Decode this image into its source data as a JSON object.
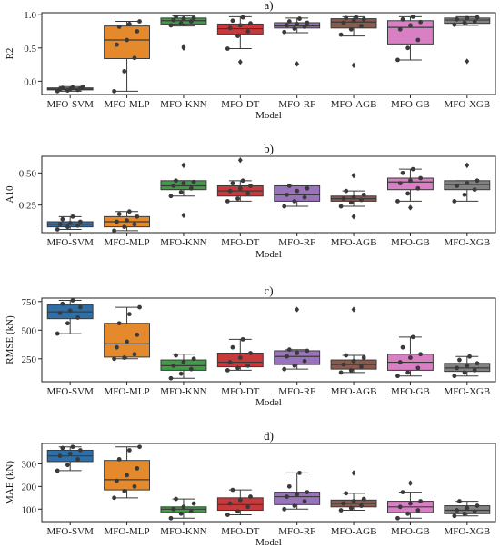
{
  "colors": {
    "MFO-SVM": "#2f6fa8",
    "MFO-MLP": "#e58a2c",
    "MFO-KNN": "#3f9e45",
    "MFO-DT": "#c8393b",
    "MFO-RF": "#9a73bd",
    "MFO-AGB": "#8a5a4d",
    "MFO-GB": "#d97fc3",
    "MFO-XGB": "#828282"
  },
  "chart_data": [
    {
      "type": "box",
      "title": "a)",
      "xlabel": "Model",
      "ylabel": "R2",
      "ylim": [
        -0.2,
        1.03
      ],
      "yticks": [
        0.0,
        0.5,
        1.0
      ],
      "yticklabels": [
        "0.0",
        "0.5",
        "1.0"
      ],
      "categories": [
        "MFO-SVM",
        "MFO-MLP",
        "MFO-KNN",
        "MFO-DT",
        "MFO-RF",
        "MFO-AGB",
        "MFO-GB",
        "MFO-XGB"
      ],
      "boxes": [
        {
          "name": "MFO-SVM",
          "whislo": -0.15,
          "q1": -0.13,
          "med": -0.12,
          "q3": -0.1,
          "whishi": -0.08,
          "fliers": [],
          "points": [
            -0.15,
            -0.14,
            -0.13,
            -0.12,
            -0.12,
            -0.11,
            -0.1,
            -0.09,
            -0.08
          ]
        },
        {
          "name": "MFO-MLP",
          "whislo": -0.15,
          "q1": 0.34,
          "med": 0.62,
          "q3": 0.83,
          "whishi": 0.9,
          "fliers": [],
          "points": [
            -0.15,
            0.15,
            0.35,
            0.55,
            0.62,
            0.75,
            0.82,
            0.86,
            0.9
          ]
        },
        {
          "name": "MFO-KNN",
          "whislo": 0.83,
          "q1": 0.86,
          "med": 0.91,
          "q3": 0.95,
          "whishi": 0.98,
          "fliers": [
            0.5,
            0.52
          ],
          "points": [
            0.84,
            0.87,
            0.9,
            0.92,
            0.94,
            0.95,
            0.97
          ]
        },
        {
          "name": "MFO-DT",
          "whislo": 0.49,
          "q1": 0.71,
          "med": 0.79,
          "q3": 0.86,
          "whishi": 0.97,
          "fliers": [
            0.29
          ],
          "points": [
            0.49,
            0.68,
            0.75,
            0.8,
            0.84,
            0.87,
            0.91,
            0.96
          ]
        },
        {
          "name": "MFO-RF",
          "whislo": 0.73,
          "q1": 0.8,
          "med": 0.83,
          "q3": 0.88,
          "whishi": 0.95,
          "fliers": [
            0.26
          ],
          "points": [
            0.74,
            0.79,
            0.82,
            0.84,
            0.86,
            0.88,
            0.9,
            0.94
          ]
        },
        {
          "name": "MFO-AGB",
          "whislo": 0.68,
          "q1": 0.8,
          "med": 0.89,
          "q3": 0.94,
          "whishi": 0.97,
          "fliers": [
            0.24
          ],
          "points": [
            0.7,
            0.78,
            0.83,
            0.88,
            0.91,
            0.93,
            0.95,
            0.96
          ]
        },
        {
          "name": "MFO-GB",
          "whislo": 0.32,
          "q1": 0.56,
          "med": 0.81,
          "q3": 0.91,
          "whishi": 0.97,
          "fliers": [],
          "points": [
            0.32,
            0.5,
            0.62,
            0.78,
            0.84,
            0.89,
            0.93,
            0.97
          ]
        },
        {
          "name": "MFO-XGB",
          "whislo": 0.84,
          "q1": 0.87,
          "med": 0.92,
          "q3": 0.95,
          "whishi": 0.97,
          "fliers": [
            0.3
          ],
          "points": [
            0.85,
            0.88,
            0.9,
            0.93,
            0.95,
            0.96
          ]
        }
      ]
    },
    {
      "type": "box",
      "title": "b)",
      "xlabel": "Model",
      "ylabel": "A10",
      "ylim": [
        0.035,
        0.63
      ],
      "yticks": [
        0.25,
        0.5
      ],
      "yticklabels": [
        "0.25",
        "0.50"
      ],
      "categories": [
        "MFO-SVM",
        "MFO-MLP",
        "MFO-KNN",
        "MFO-DT",
        "MFO-RF",
        "MFO-AGB",
        "MFO-GB",
        "MFO-XGB"
      ],
      "boxes": [
        {
          "name": "MFO-SVM",
          "whislo": 0.06,
          "q1": 0.08,
          "med": 0.1,
          "q3": 0.12,
          "whishi": 0.16,
          "fliers": [],
          "points": [
            0.06,
            0.08,
            0.09,
            0.1,
            0.11,
            0.12,
            0.14,
            0.16
          ]
        },
        {
          "name": "MFO-MLP",
          "whislo": 0.05,
          "q1": 0.08,
          "med": 0.12,
          "q3": 0.16,
          "whishi": 0.2,
          "fliers": [],
          "points": [
            0.05,
            0.08,
            0.1,
            0.12,
            0.13,
            0.16,
            0.18,
            0.2
          ]
        },
        {
          "name": "MFO-KNN",
          "whislo": 0.32,
          "q1": 0.37,
          "med": 0.4,
          "q3": 0.44,
          "whishi": 0.44,
          "fliers": [
            0.17,
            0.56
          ],
          "points": [
            0.32,
            0.35,
            0.38,
            0.4,
            0.42,
            0.43,
            0.44
          ]
        },
        {
          "name": "MFO-DT",
          "whislo": 0.28,
          "q1": 0.32,
          "med": 0.36,
          "q3": 0.4,
          "whishi": 0.44,
          "fliers": [
            0.6
          ],
          "points": [
            0.28,
            0.3,
            0.34,
            0.36,
            0.38,
            0.4,
            0.42,
            0.44
          ]
        },
        {
          "name": "MFO-RF",
          "whislo": 0.24,
          "q1": 0.28,
          "med": 0.33,
          "q3": 0.4,
          "whishi": 0.4,
          "fliers": [],
          "points": [
            0.24,
            0.28,
            0.31,
            0.33,
            0.36,
            0.38,
            0.4
          ]
        },
        {
          "name": "MFO-AGB",
          "whislo": 0.24,
          "q1": 0.28,
          "med": 0.3,
          "q3": 0.32,
          "whishi": 0.36,
          "fliers": [
            0.16,
            0.48
          ],
          "points": [
            0.24,
            0.27,
            0.29,
            0.3,
            0.31,
            0.33,
            0.36
          ]
        },
        {
          "name": "MFO-GB",
          "whislo": 0.28,
          "q1": 0.37,
          "med": 0.43,
          "q3": 0.46,
          "whishi": 0.53,
          "fliers": [
            0.23
          ],
          "points": [
            0.28,
            0.34,
            0.38,
            0.42,
            0.44,
            0.46,
            0.5,
            0.53
          ]
        },
        {
          "name": "MFO-XGB",
          "whislo": 0.28,
          "q1": 0.37,
          "med": 0.41,
          "q3": 0.44,
          "whishi": 0.44,
          "fliers": [
            0.56
          ],
          "points": [
            0.28,
            0.33,
            0.37,
            0.4,
            0.42,
            0.44
          ]
        }
      ]
    },
    {
      "type": "box",
      "title": "c)",
      "xlabel": "Model",
      "ylabel": "RMSE (kN)",
      "ylim": [
        50,
        780
      ],
      "yticks": [
        250,
        500,
        750
      ],
      "yticklabels": [
        "250",
        "500",
        "750"
      ],
      "categories": [
        "MFO-SVM",
        "MFO-MLP",
        "MFO-KNN",
        "MFO-DT",
        "MFO-RF",
        "MFO-AGB",
        "MFO-GB",
        "MFO-XGB"
      ],
      "boxes": [
        {
          "name": "MFO-SVM",
          "whislo": 470,
          "q1": 600,
          "med": 660,
          "q3": 720,
          "whishi": 760,
          "fliers": [],
          "points": [
            470,
            560,
            610,
            650,
            670,
            700,
            730,
            760
          ]
        },
        {
          "name": "MFO-MLP",
          "whislo": 250,
          "q1": 265,
          "med": 380,
          "q3": 560,
          "whishi": 700,
          "fliers": [],
          "points": [
            250,
            260,
            290,
            350,
            400,
            460,
            560,
            640,
            700
          ]
        },
        {
          "name": "MFO-KNN",
          "whislo": 80,
          "q1": 150,
          "med": 190,
          "q3": 240,
          "whishi": 290,
          "fliers": [],
          "points": [
            80,
            120,
            160,
            190,
            220,
            250,
            280
          ]
        },
        {
          "name": "MFO-DT",
          "whislo": 150,
          "q1": 180,
          "med": 220,
          "q3": 300,
          "whishi": 420,
          "fliers": [],
          "points": [
            150,
            170,
            190,
            220,
            260,
            300,
            350,
            420
          ]
        },
        {
          "name": "MFO-RF",
          "whislo": 160,
          "q1": 200,
          "med": 270,
          "q3": 320,
          "whishi": 330,
          "fliers": [
            680
          ],
          "points": [
            160,
            190,
            230,
            270,
            300,
            320,
            330
          ]
        },
        {
          "name": "MFO-AGB",
          "whislo": 130,
          "q1": 160,
          "med": 200,
          "q3": 240,
          "whishi": 280,
          "fliers": [
            680
          ],
          "points": [
            130,
            150,
            180,
            200,
            230,
            260,
            280
          ]
        },
        {
          "name": "MFO-GB",
          "whislo": 100,
          "q1": 150,
          "med": 220,
          "q3": 290,
          "whishi": 440,
          "fliers": [],
          "points": [
            100,
            130,
            170,
            220,
            260,
            290,
            350,
            440
          ]
        },
        {
          "name": "MFO-XGB",
          "whislo": 100,
          "q1": 140,
          "med": 170,
          "q3": 210,
          "whishi": 270,
          "fliers": [],
          "points": [
            100,
            130,
            150,
            170,
            190,
            210,
            240,
            270
          ]
        }
      ]
    },
    {
      "type": "box",
      "title": "d)",
      "xlabel": "Model",
      "ylabel": "MAE (kN)",
      "ylim": [
        45,
        390
      ],
      "yticks": [
        100,
        200,
        300
      ],
      "yticklabels": [
        "100",
        "200",
        "300"
      ],
      "categories": [
        "MFO-SVM",
        "MFO-MLP",
        "MFO-KNN",
        "MFO-DT",
        "MFO-RF",
        "MFO-AGB",
        "MFO-GB",
        "MFO-XGB"
      ],
      "boxes": [
        {
          "name": "MFO-SVM",
          "whislo": 270,
          "q1": 310,
          "med": 335,
          "q3": 360,
          "whishi": 375,
          "fliers": [],
          "points": [
            270,
            295,
            320,
            335,
            345,
            360,
            370,
            375
          ]
        },
        {
          "name": "MFO-MLP",
          "whislo": 150,
          "q1": 185,
          "med": 230,
          "q3": 315,
          "whishi": 375,
          "fliers": [],
          "points": [
            150,
            180,
            200,
            225,
            250,
            280,
            320,
            360,
            375
          ]
        },
        {
          "name": "MFO-KNN",
          "whislo": 60,
          "q1": 85,
          "med": 100,
          "q3": 110,
          "whishi": 145,
          "fliers": [],
          "points": [
            60,
            80,
            90,
            100,
            110,
            125,
            145
          ]
        },
        {
          "name": "MFO-DT",
          "whislo": 75,
          "q1": 95,
          "med": 120,
          "q3": 150,
          "whishi": 185,
          "fliers": [],
          "points": [
            75,
            90,
            110,
            125,
            140,
            155,
            185
          ]
        },
        {
          "name": "MFO-RF",
          "whislo": 100,
          "q1": 120,
          "med": 155,
          "q3": 175,
          "whishi": 260,
          "fliers": [],
          "points": [
            100,
            115,
            135,
            155,
            165,
            175,
            200,
            260
          ]
        },
        {
          "name": "MFO-AGB",
          "whislo": 95,
          "q1": 110,
          "med": 125,
          "q3": 140,
          "whishi": 170,
          "fliers": [
            260
          ],
          "points": [
            95,
            105,
            115,
            125,
            135,
            145,
            170
          ]
        },
        {
          "name": "MFO-GB",
          "whislo": 60,
          "q1": 85,
          "med": 110,
          "q3": 135,
          "whishi": 175,
          "fliers": [
            215
          ],
          "points": [
            60,
            80,
            95,
            110,
            125,
            135,
            175
          ]
        },
        {
          "name": "MFO-XGB",
          "whislo": 70,
          "q1": 80,
          "med": 95,
          "q3": 115,
          "whishi": 135,
          "fliers": [],
          "points": [
            70,
            80,
            90,
            95,
            105,
            115,
            135
          ]
        }
      ]
    }
  ]
}
